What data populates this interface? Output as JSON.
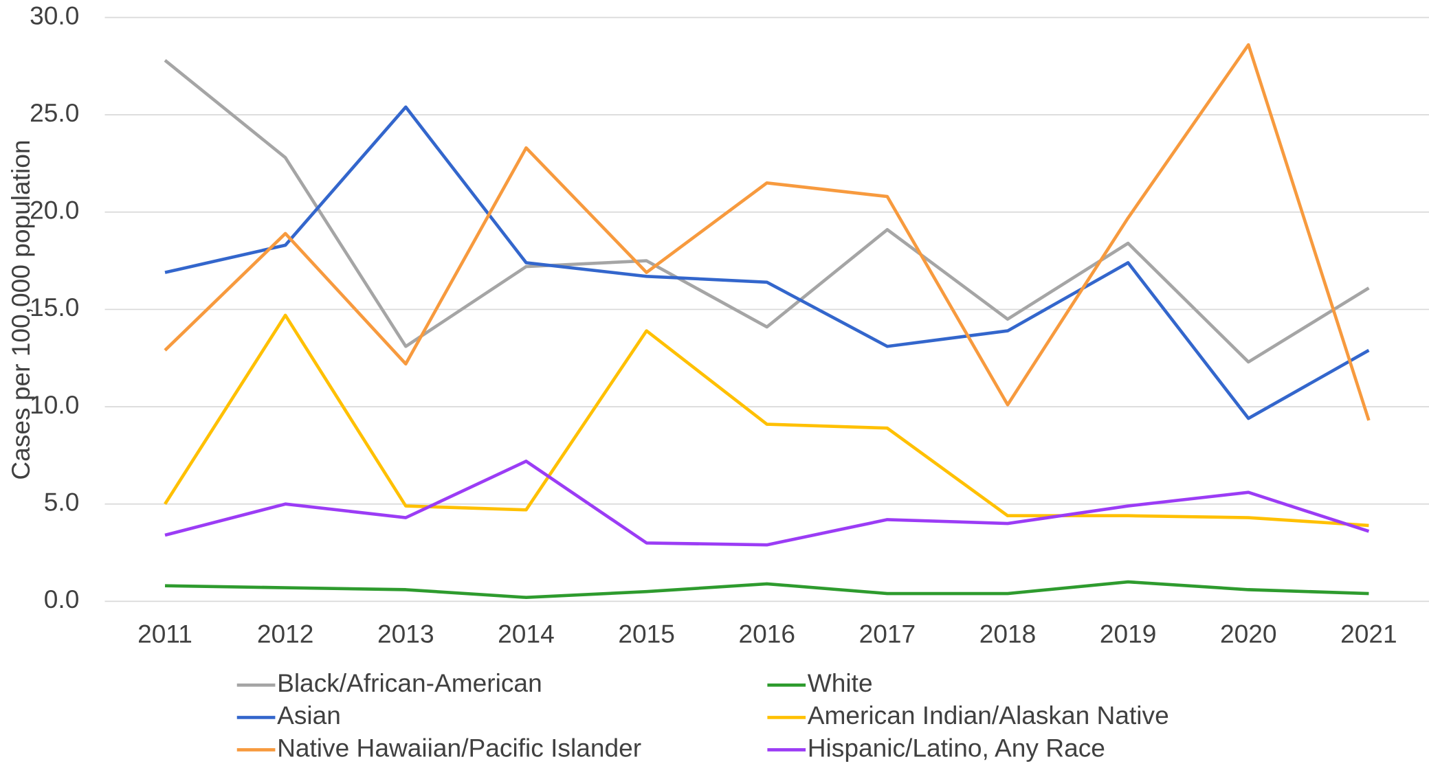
{
  "chart_data": {
    "type": "line",
    "y_label": "Cases per 100,000 population",
    "categories": [
      "2011",
      "2012",
      "2013",
      "2014",
      "2015",
      "2016",
      "2017",
      "2018",
      "2019",
      "2020",
      "2021"
    ],
    "series": [
      {
        "name": "Black/African-American",
        "color": "#a5a5a5",
        "values": [
          27.8,
          22.8,
          13.1,
          17.2,
          17.5,
          14.1,
          19.1,
          14.5,
          18.4,
          12.3,
          16.1
        ]
      },
      {
        "name": "White",
        "color": "#2e9b2e",
        "values": [
          0.8,
          0.7,
          0.6,
          0.2,
          0.5,
          0.9,
          0.4,
          0.4,
          1.0,
          0.6,
          0.4
        ]
      },
      {
        "name": "Asian",
        "color": "#3366cc",
        "values": [
          16.9,
          18.3,
          25.4,
          17.4,
          16.7,
          16.4,
          13.1,
          13.9,
          17.4,
          9.4,
          12.9
        ]
      },
      {
        "name": "American Indian/Alaskan Native",
        "color": "#ffc000",
        "values": [
          5.0,
          14.7,
          4.9,
          4.7,
          13.9,
          9.1,
          8.9,
          4.4,
          4.4,
          4.3,
          3.9
        ]
      },
      {
        "name": "Native Hawaiian/Pacific Islander",
        "color": "#f79a3e",
        "values": [
          12.9,
          18.9,
          12.2,
          23.3,
          16.9,
          21.5,
          20.8,
          10.1,
          19.7,
          28.6,
          9.3
        ]
      },
      {
        "name": "Hispanic/Latino, Any Race",
        "color": "#9b3cf5",
        "values": [
          3.4,
          5.0,
          4.3,
          7.2,
          3.0,
          2.9,
          4.2,
          4.0,
          4.9,
          5.6,
          3.6
        ]
      }
    ],
    "ylim": [
      0,
      30
    ],
    "yticks": [
      {
        "value": 0,
        "label": "0.0"
      },
      {
        "value": 5,
        "label": "5.0"
      },
      {
        "value": 10,
        "label": "10.0"
      },
      {
        "value": 15,
        "label": "15.0"
      },
      {
        "value": 20,
        "label": "20.0"
      },
      {
        "value": 25,
        "label": "25.0"
      },
      {
        "value": 30,
        "label": "30.0"
      }
    ],
    "grid": true,
    "legend": "bottom"
  }
}
